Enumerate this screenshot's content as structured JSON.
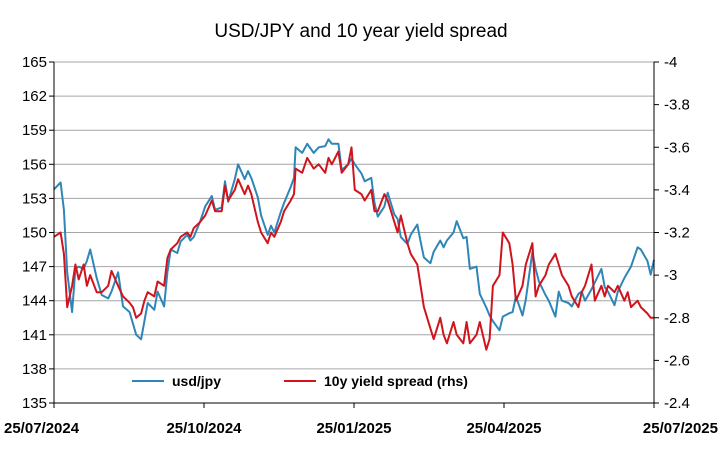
{
  "chart_data": {
    "type": "line",
    "title": "USD/JPY and 10 year yield spread",
    "x_ticks": [
      "25/07/2024",
      "25/10/2024",
      "25/01/2025",
      "25/04/2025",
      "25/07/2025"
    ],
    "y_left": {
      "min": 135,
      "max": 165,
      "ticks": [
        "135",
        "138",
        "141",
        "144",
        "147",
        "150",
        "153",
        "156",
        "159",
        "162",
        "165"
      ]
    },
    "y_right": {
      "min": -4,
      "max": -2.4,
      "inverted": true,
      "ticks": [
        "-4",
        "-3.8",
        "-3.6",
        "-3.4",
        "-3.2",
        "-3",
        "-2.8",
        "-2.6",
        "-2.4"
      ]
    },
    "grid": "horizontal",
    "legend_position": "bottom-center",
    "series": [
      {
        "name": "usd/jpy",
        "axis": "left",
        "color": "#2E86B8",
        "points": [
          [
            "2024-07-25",
            153.8
          ],
          [
            "2024-07-29",
            154.4
          ],
          [
            "2024-07-31",
            152.0
          ],
          [
            "2024-08-02",
            146.5
          ],
          [
            "2024-08-05",
            143.0
          ],
          [
            "2024-08-07",
            146.8
          ],
          [
            "2024-08-09",
            147.0
          ],
          [
            "2024-08-12",
            146.8
          ],
          [
            "2024-08-14",
            147.5
          ],
          [
            "2024-08-16",
            148.5
          ],
          [
            "2024-08-20",
            146.0
          ],
          [
            "2024-08-23",
            144.5
          ],
          [
            "2024-08-27",
            144.2
          ],
          [
            "2024-08-29",
            144.8
          ],
          [
            "2024-09-02",
            146.5
          ],
          [
            "2024-09-05",
            143.5
          ],
          [
            "2024-09-09",
            143.0
          ],
          [
            "2024-09-11",
            142.0
          ],
          [
            "2024-09-13",
            141.0
          ],
          [
            "2024-09-16",
            140.6
          ],
          [
            "2024-09-18",
            142.2
          ],
          [
            "2024-09-20",
            143.8
          ],
          [
            "2024-09-24",
            143.2
          ],
          [
            "2024-09-26",
            144.8
          ],
          [
            "2024-09-30",
            143.5
          ],
          [
            "2024-10-02",
            146.5
          ],
          [
            "2024-10-04",
            148.5
          ],
          [
            "2024-10-08",
            148.2
          ],
          [
            "2024-10-10",
            149.2
          ],
          [
            "2024-10-14",
            149.8
          ],
          [
            "2024-10-16",
            149.3
          ],
          [
            "2024-10-18",
            149.6
          ],
          [
            "2024-10-22",
            151.0
          ],
          [
            "2024-10-25",
            152.3
          ],
          [
            "2024-10-29",
            153.2
          ],
          [
            "2024-10-31",
            152.0
          ],
          [
            "2024-11-04",
            152.2
          ],
          [
            "2024-11-06",
            154.5
          ],
          [
            "2024-11-08",
            152.7
          ],
          [
            "2024-11-12",
            154.7
          ],
          [
            "2024-11-14",
            156.0
          ],
          [
            "2024-11-18",
            154.7
          ],
          [
            "2024-11-20",
            155.4
          ],
          [
            "2024-11-22",
            154.8
          ],
          [
            "2024-11-26",
            153.1
          ],
          [
            "2024-11-28",
            151.5
          ],
          [
            "2024-12-02",
            149.8
          ],
          [
            "2024-12-04",
            150.6
          ],
          [
            "2024-12-06",
            150.0
          ],
          [
            "2024-12-10",
            151.8
          ],
          [
            "2024-12-12",
            152.6
          ],
          [
            "2024-12-16",
            154.0
          ],
          [
            "2024-12-18",
            154.8
          ],
          [
            "2024-12-19",
            157.5
          ],
          [
            "2024-12-23",
            157.0
          ],
          [
            "2024-12-26",
            157.8
          ],
          [
            "2024-12-30",
            157.0
          ],
          [
            "2025-01-02",
            157.5
          ],
          [
            "2025-01-06",
            157.6
          ],
          [
            "2025-01-08",
            158.2
          ],
          [
            "2025-01-10",
            157.8
          ],
          [
            "2025-01-14",
            157.8
          ],
          [
            "2025-01-16",
            155.5
          ],
          [
            "2025-01-20",
            156.0
          ],
          [
            "2025-01-22",
            156.5
          ],
          [
            "2025-01-24",
            156.0
          ],
          [
            "2025-01-28",
            155.2
          ],
          [
            "2025-01-30",
            154.5
          ],
          [
            "2025-02-03",
            154.8
          ],
          [
            "2025-02-05",
            152.6
          ],
          [
            "2025-02-07",
            151.4
          ],
          [
            "2025-02-11",
            152.3
          ],
          [
            "2025-02-13",
            153.5
          ],
          [
            "2025-02-17",
            151.6
          ],
          [
            "2025-02-19",
            151.2
          ],
          [
            "2025-02-21",
            149.6
          ],
          [
            "2025-02-25",
            149.0
          ],
          [
            "2025-02-27",
            149.8
          ],
          [
            "2025-03-03",
            150.7
          ],
          [
            "2025-03-05",
            149.2
          ],
          [
            "2025-03-07",
            147.8
          ],
          [
            "2025-03-11",
            147.3
          ],
          [
            "2025-03-13",
            148.3
          ],
          [
            "2025-03-17",
            149.3
          ],
          [
            "2025-03-19",
            148.7
          ],
          [
            "2025-03-21",
            149.3
          ],
          [
            "2025-03-25",
            150.0
          ],
          [
            "2025-03-27",
            151.0
          ],
          [
            "2025-03-31",
            149.5
          ],
          [
            "2025-04-02",
            149.6
          ],
          [
            "2025-04-04",
            146.8
          ],
          [
            "2025-04-08",
            147.0
          ],
          [
            "2025-04-10",
            144.6
          ],
          [
            "2025-04-14",
            143.4
          ],
          [
            "2025-04-16",
            142.7
          ],
          [
            "2025-04-18",
            142.2
          ],
          [
            "2025-04-22",
            141.4
          ],
          [
            "2025-04-24",
            142.6
          ],
          [
            "2025-04-28",
            142.9
          ],
          [
            "2025-04-30",
            143.0
          ],
          [
            "2025-05-02",
            144.4
          ],
          [
            "2025-05-06",
            142.7
          ],
          [
            "2025-05-08",
            144.1
          ],
          [
            "2025-05-12",
            148.3
          ],
          [
            "2025-05-14",
            146.8
          ],
          [
            "2025-05-16",
            145.7
          ],
          [
            "2025-05-20",
            144.5
          ],
          [
            "2025-05-22",
            144.0
          ],
          [
            "2025-05-26",
            142.6
          ],
          [
            "2025-05-28",
            144.8
          ],
          [
            "2025-05-30",
            144.0
          ],
          [
            "2025-06-03",
            143.8
          ],
          [
            "2025-06-05",
            143.5
          ],
          [
            "2025-06-09",
            144.6
          ],
          [
            "2025-06-11",
            144.8
          ],
          [
            "2025-06-13",
            144.0
          ],
          [
            "2025-06-17",
            145.0
          ],
          [
            "2025-06-19",
            145.6
          ],
          [
            "2025-06-23",
            146.8
          ],
          [
            "2025-06-25",
            145.2
          ],
          [
            "2025-06-27",
            144.8
          ],
          [
            "2025-07-01",
            143.6
          ],
          [
            "2025-07-03",
            144.8
          ],
          [
            "2025-07-07",
            146.0
          ],
          [
            "2025-07-09",
            146.5
          ],
          [
            "2025-07-11",
            147.0
          ],
          [
            "2025-07-15",
            148.7
          ],
          [
            "2025-07-17",
            148.5
          ],
          [
            "2025-07-21",
            147.5
          ],
          [
            "2025-07-23",
            146.3
          ],
          [
            "2025-07-25",
            147.6
          ]
        ]
      },
      {
        "name": "10y yield spread (rhs)",
        "axis": "right",
        "color": "#D0141E",
        "points": [
          [
            "2024-07-25",
            -3.18
          ],
          [
            "2024-07-29",
            -3.2
          ],
          [
            "2024-07-31",
            -3.1
          ],
          [
            "2024-08-02",
            -2.85
          ],
          [
            "2024-08-05",
            -2.95
          ],
          [
            "2024-08-07",
            -3.05
          ],
          [
            "2024-08-09",
            -2.98
          ],
          [
            "2024-08-12",
            -3.05
          ],
          [
            "2024-08-14",
            -2.95
          ],
          [
            "2024-08-16",
            -3.0
          ],
          [
            "2024-08-20",
            -2.92
          ],
          [
            "2024-08-23",
            -2.92
          ],
          [
            "2024-08-27",
            -2.95
          ],
          [
            "2024-08-29",
            -3.02
          ],
          [
            "2024-09-02",
            -2.95
          ],
          [
            "2024-09-05",
            -2.9
          ],
          [
            "2024-09-09",
            -2.87
          ],
          [
            "2024-09-11",
            -2.85
          ],
          [
            "2024-09-13",
            -2.8
          ],
          [
            "2024-09-16",
            -2.82
          ],
          [
            "2024-09-18",
            -2.88
          ],
          [
            "2024-09-20",
            -2.92
          ],
          [
            "2024-09-24",
            -2.9
          ],
          [
            "2024-09-26",
            -2.97
          ],
          [
            "2024-09-30",
            -2.95
          ],
          [
            "2024-10-02",
            -3.08
          ],
          [
            "2024-10-04",
            -3.12
          ],
          [
            "2024-10-08",
            -3.15
          ],
          [
            "2024-10-10",
            -3.18
          ],
          [
            "2024-10-14",
            -3.2
          ],
          [
            "2024-10-16",
            -3.18
          ],
          [
            "2024-10-18",
            -3.22
          ],
          [
            "2024-10-22",
            -3.25
          ],
          [
            "2024-10-25",
            -3.28
          ],
          [
            "2024-10-29",
            -3.35
          ],
          [
            "2024-10-31",
            -3.3
          ],
          [
            "2024-11-04",
            -3.3
          ],
          [
            "2024-11-06",
            -3.42
          ],
          [
            "2024-11-08",
            -3.35
          ],
          [
            "2024-11-12",
            -3.4
          ],
          [
            "2024-11-14",
            -3.45
          ],
          [
            "2024-11-18",
            -3.38
          ],
          [
            "2024-11-20",
            -3.42
          ],
          [
            "2024-11-22",
            -3.38
          ],
          [
            "2024-11-26",
            -3.25
          ],
          [
            "2024-11-28",
            -3.2
          ],
          [
            "2024-12-02",
            -3.15
          ],
          [
            "2024-12-04",
            -3.2
          ],
          [
            "2024-12-06",
            -3.18
          ],
          [
            "2024-12-10",
            -3.25
          ],
          [
            "2024-12-12",
            -3.3
          ],
          [
            "2024-12-16",
            -3.35
          ],
          [
            "2024-12-18",
            -3.38
          ],
          [
            "2024-12-19",
            -3.5
          ],
          [
            "2024-12-23",
            -3.48
          ],
          [
            "2024-12-26",
            -3.55
          ],
          [
            "2024-12-30",
            -3.5
          ],
          [
            "2025-01-02",
            -3.52
          ],
          [
            "2025-01-06",
            -3.48
          ],
          [
            "2025-01-08",
            -3.55
          ],
          [
            "2025-01-10",
            -3.52
          ],
          [
            "2025-01-14",
            -3.58
          ],
          [
            "2025-01-16",
            -3.48
          ],
          [
            "2025-01-20",
            -3.52
          ],
          [
            "2025-01-22",
            -3.6
          ],
          [
            "2025-01-24",
            -3.4
          ],
          [
            "2025-01-28",
            -3.38
          ],
          [
            "2025-01-30",
            -3.35
          ],
          [
            "2025-02-03",
            -3.4
          ],
          [
            "2025-02-05",
            -3.3
          ],
          [
            "2025-02-07",
            -3.3
          ],
          [
            "2025-02-11",
            -3.38
          ],
          [
            "2025-02-13",
            -3.35
          ],
          [
            "2025-02-17",
            -3.25
          ],
          [
            "2025-02-19",
            -3.2
          ],
          [
            "2025-02-21",
            -3.28
          ],
          [
            "2025-02-25",
            -3.15
          ],
          [
            "2025-02-27",
            -3.1
          ],
          [
            "2025-03-03",
            -3.05
          ],
          [
            "2025-03-05",
            -2.95
          ],
          [
            "2025-03-07",
            -2.85
          ],
          [
            "2025-03-11",
            -2.75
          ],
          [
            "2025-03-13",
            -2.7
          ],
          [
            "2025-03-17",
            -2.8
          ],
          [
            "2025-03-19",
            -2.72
          ],
          [
            "2025-03-21",
            -2.68
          ],
          [
            "2025-03-25",
            -2.78
          ],
          [
            "2025-03-27",
            -2.72
          ],
          [
            "2025-03-31",
            -2.68
          ],
          [
            "2025-04-02",
            -2.78
          ],
          [
            "2025-04-04",
            -2.68
          ],
          [
            "2025-04-08",
            -2.72
          ],
          [
            "2025-04-10",
            -2.78
          ],
          [
            "2025-04-14",
            -2.65
          ],
          [
            "2025-04-16",
            -2.7
          ],
          [
            "2025-04-18",
            -2.95
          ],
          [
            "2025-04-22",
            -3.0
          ],
          [
            "2025-04-24",
            -3.2
          ],
          [
            "2025-04-28",
            -3.15
          ],
          [
            "2025-04-30",
            -3.05
          ],
          [
            "2025-05-02",
            -2.88
          ],
          [
            "2025-05-06",
            -2.95
          ],
          [
            "2025-05-08",
            -3.05
          ],
          [
            "2025-05-12",
            -3.15
          ],
          [
            "2025-05-14",
            -2.9
          ],
          [
            "2025-05-16",
            -2.95
          ],
          [
            "2025-05-20",
            -3.0
          ],
          [
            "2025-05-22",
            -3.05
          ],
          [
            "2025-05-26",
            -3.1
          ],
          [
            "2025-05-28",
            -3.05
          ],
          [
            "2025-05-30",
            -3.0
          ],
          [
            "2025-06-03",
            -2.95
          ],
          [
            "2025-06-05",
            -2.9
          ],
          [
            "2025-06-09",
            -2.85
          ],
          [
            "2025-06-11",
            -2.92
          ],
          [
            "2025-06-13",
            -2.95
          ],
          [
            "2025-06-17",
            -3.05
          ],
          [
            "2025-06-19",
            -2.88
          ],
          [
            "2025-06-23",
            -2.95
          ],
          [
            "2025-06-25",
            -2.9
          ],
          [
            "2025-06-27",
            -2.95
          ],
          [
            "2025-07-01",
            -2.92
          ],
          [
            "2025-07-03",
            -2.95
          ],
          [
            "2025-07-07",
            -2.88
          ],
          [
            "2025-07-09",
            -2.92
          ],
          [
            "2025-07-11",
            -2.85
          ],
          [
            "2025-07-15",
            -2.88
          ],
          [
            "2025-07-17",
            -2.85
          ],
          [
            "2025-07-21",
            -2.82
          ],
          [
            "2025-07-23",
            -2.8
          ],
          [
            "2025-07-25",
            -2.8
          ]
        ]
      }
    ]
  }
}
